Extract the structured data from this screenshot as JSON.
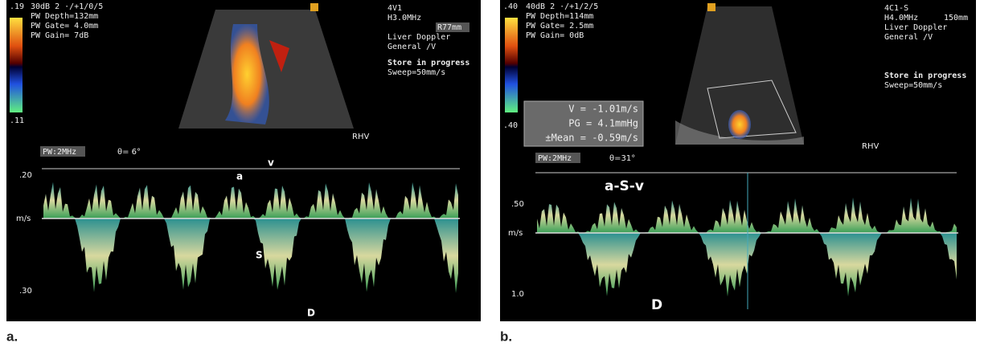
{
  "panels": [
    {
      "label": "a.",
      "header_left": [
        ".19",
        "30dB  2 ·/+1/0/5",
        "PW Depth=132mm",
        "PW Gate=  4.0mm",
        "PW Gain=   7dB"
      ],
      "scale_bottom": ".11",
      "header_right": [
        "4V1",
        "H3.0MHz",
        "R77mm",
        "Liver Doppler",
        "General /V",
        "Store in progress",
        "Sweep=50mm/s"
      ],
      "vessel": "RHV",
      "pw_label": "PW:2MHz",
      "angle": "θ= 6°",
      "axis": [
        ".20",
        "m/s",
        ".30"
      ],
      "annotations": [
        "a",
        "v",
        "S",
        "D"
      ]
    },
    {
      "label": "b.",
      "header_left": [
        ".40",
        "40dB  2 ·/+1/2/5",
        "PW Depth=114mm",
        "PW Gate=  2.5mm",
        "PW Gain=  0dB"
      ],
      "scale_bottom": ".40",
      "header_right": [
        "4C1-S",
        "H4.0MHz",
        "150mm",
        "Liver Doppler",
        "General /V",
        "Store in progress",
        "Sweep=50mm/s"
      ],
      "measurements": [
        "V = -1.01m/s",
        "PG = 4.1mmHg",
        "±Mean = -0.59m/s"
      ],
      "vessel": "RHV",
      "pw_label": "PW:2MHz",
      "angle": "θ=31°",
      "axis": [
        ".50",
        "m/s",
        "1.0"
      ],
      "annotations": [
        "a-S-v",
        "D"
      ]
    }
  ]
}
